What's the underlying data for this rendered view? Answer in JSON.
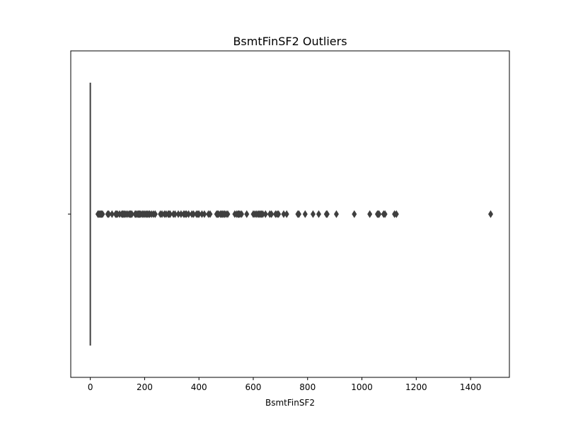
{
  "chart_data": {
    "type": "box",
    "title": "BsmtFinSF2 Outliers",
    "xlabel": "BsmtFinSF2",
    "ylabel": "",
    "xlim": [
      -72,
      1543
    ],
    "xticks": [
      0,
      200,
      400,
      600,
      800,
      1000,
      1200,
      1400
    ],
    "orientation": "horizontal",
    "box": {
      "min": 0,
      "q1": 0,
      "median": 0,
      "q3": 0,
      "max": 0
    },
    "outliers": [
      28,
      32,
      35,
      39,
      41,
      45,
      64,
      68,
      80,
      93,
      96,
      100,
      108,
      116,
      119,
      123,
      127,
      132,
      138,
      144,
      147,
      149,
      153,
      165,
      168,
      173,
      177,
      180,
      182,
      186,
      192,
      196,
      201,
      206,
      210,
      215,
      219,
      226,
      233,
      239,
      258,
      264,
      273,
      279,
      287,
      290,
      294,
      306,
      312,
      324,
      334,
      344,
      349,
      354,
      362,
      374,
      380,
      391,
      396,
      400,
      411,
      420,
      435,
      441,
      465,
      469,
      472,
      479,
      483,
      486,
      491,
      494,
      500,
      506,
      532,
      539,
      544,
      547,
      551,
      557,
      576,
      600,
      606,
      612,
      618,
      622,
      627,
      630,
      635,
      645,
      661,
      667,
      682,
      688,
      693,
      712,
      723,
      764,
      768,
      791,
      820,
      841,
      869,
      872,
      906,
      972,
      1029,
      1057,
      1061,
      1063,
      1080,
      1085,
      1120,
      1127,
      1474
    ],
    "grid": false,
    "colors": {
      "box": "#3f3f3f",
      "outlier": "#3f3f3f",
      "frame": "#000000"
    }
  }
}
